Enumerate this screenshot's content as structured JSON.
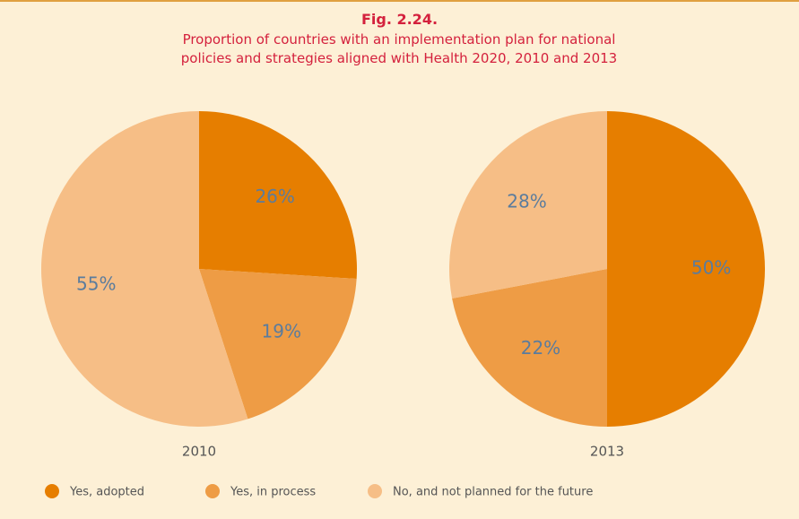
{
  "header": {
    "title": "Fig. 2.24.",
    "subtitle": "Proportion of countries with an implementation plan for national policies and strategies aligned with Health 2020, 2010 and 2013"
  },
  "chart_data": [
    {
      "type": "pie",
      "title": "2010",
      "categories": [
        "Yes, adopted",
        "Yes, in process",
        "No, and not planned for the future"
      ],
      "values": [
        26,
        19,
        55
      ],
      "value_labels": [
        "26%",
        "19%",
        "55%"
      ],
      "colors": [
        "#e67e00",
        "#ee9c45",
        "#f6be86"
      ]
    },
    {
      "type": "pie",
      "title": "2013",
      "categories": [
        "Yes, adopted",
        "Yes, in process",
        "No, and not planned for the future"
      ],
      "values": [
        50,
        22,
        28
      ],
      "value_labels": [
        "50%",
        "22%",
        "28%"
      ],
      "colors": [
        "#e67e00",
        "#ee9c45",
        "#f6be86"
      ]
    }
  ]
}
